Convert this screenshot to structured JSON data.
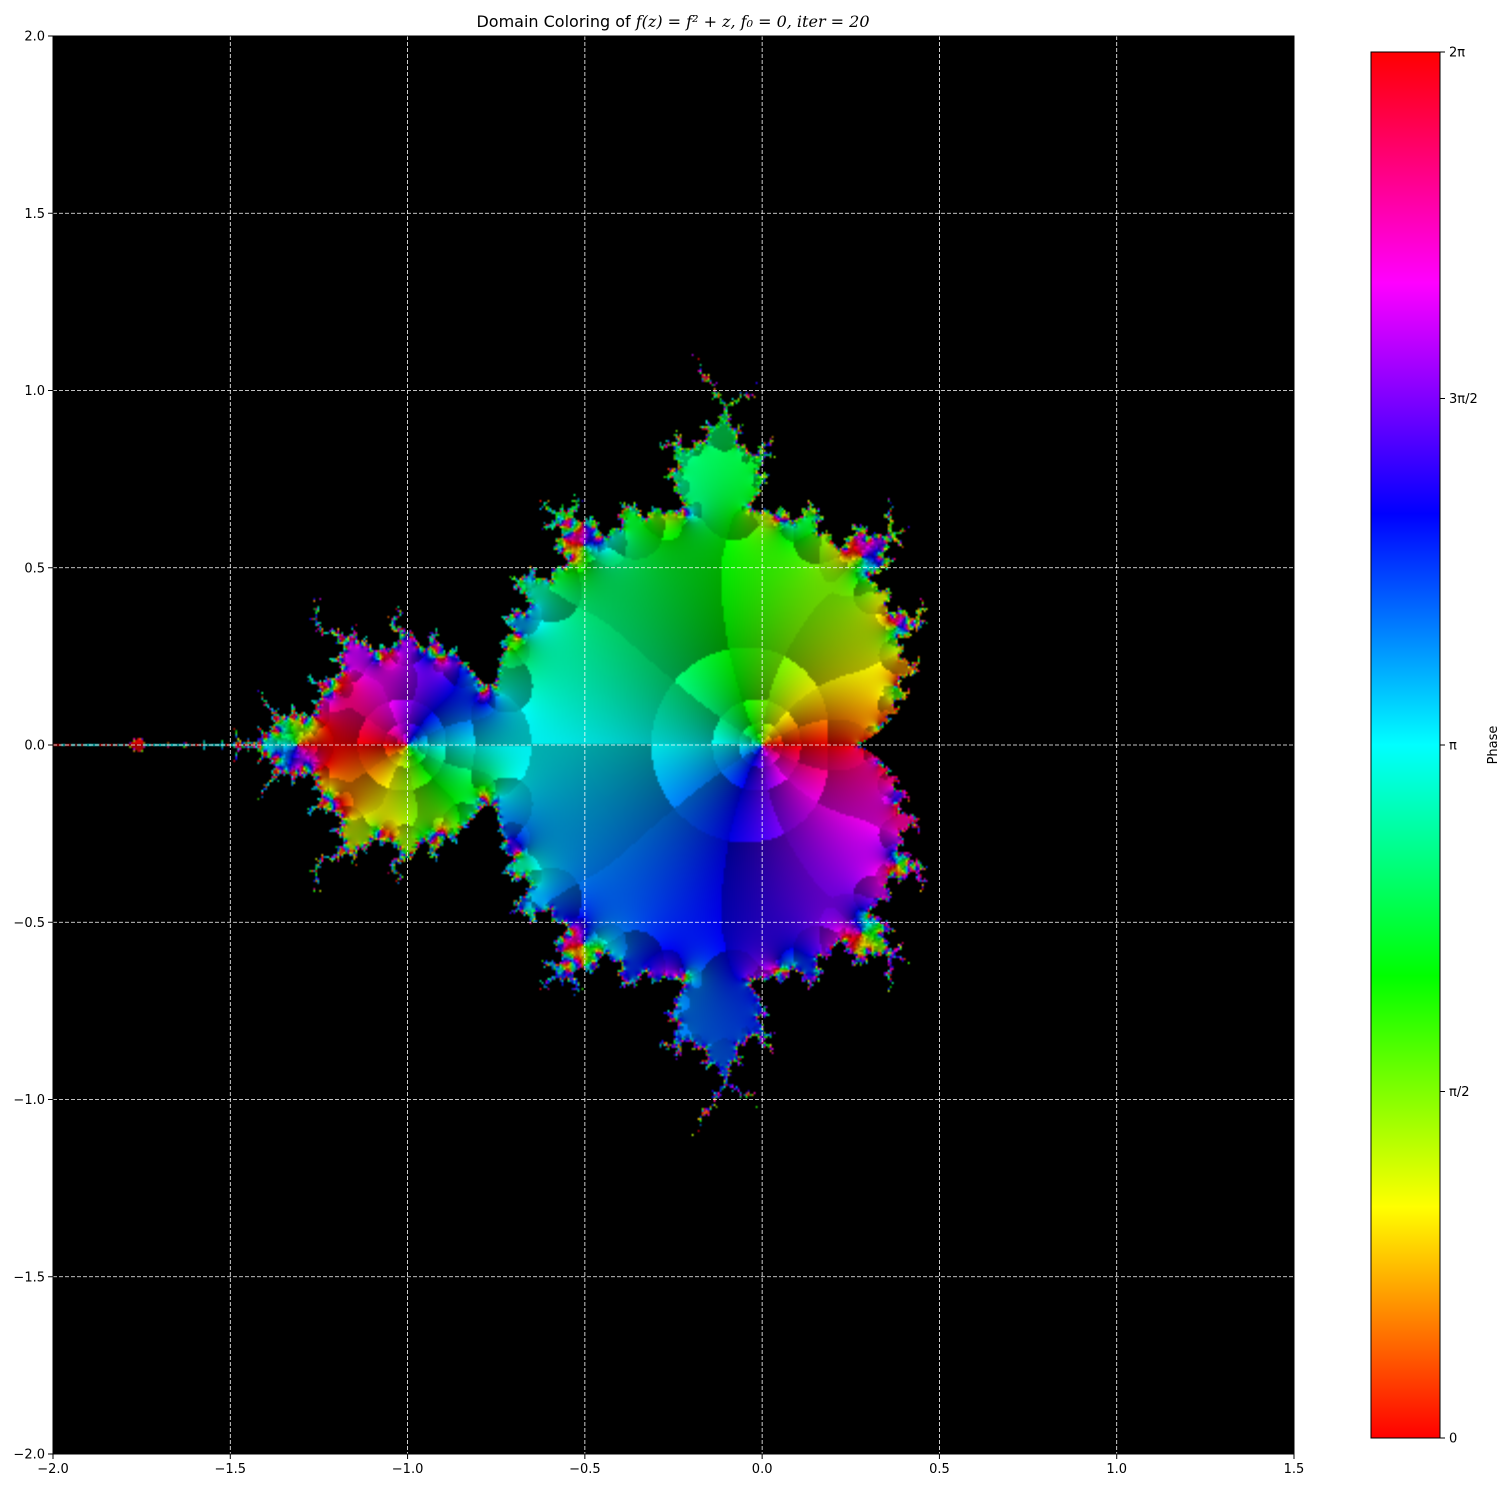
{
  "chart_data": {
    "type": "heatmap",
    "title": {
      "prefix": "Domain Coloring of ",
      "math": "f(z) = f² + z, f₀ = 0, iter = 20"
    },
    "function": "f(z) = f^2 + z",
    "f0": 0,
    "iterations": 20,
    "xlim": [
      -2.0,
      1.5
    ],
    "ylim": [
      -2.0,
      2.0
    ],
    "x_ticks": [
      -2.0,
      -1.5,
      -1.0,
      -0.5,
      0.0,
      0.5,
      1.0,
      1.5
    ],
    "y_ticks": [
      -2.0,
      -1.5,
      -1.0,
      -0.5,
      0.0,
      0.5,
      1.0,
      1.5,
      2.0
    ],
    "x_tick_labels": [
      "−2.0",
      "−1.5",
      "−1.0",
      "−0.5",
      "0.0",
      "0.5",
      "1.0",
      "1.5"
    ],
    "y_tick_labels": [
      "−2.0",
      "−1.5",
      "−1.0",
      "−0.5",
      "0.0",
      "0.5",
      "1.0",
      "1.5",
      "2.0"
    ],
    "grid": true,
    "grid_style": "dashed",
    "grid_color": "#ffffff",
    "background_color": "#000000",
    "colorbar": {
      "label": "Phase",
      "colormap": "hsv",
      "range": [
        0,
        6.283185307
      ],
      "ticks": [
        0,
        1.570796327,
        3.141592654,
        4.71238898,
        6.283185307
      ],
      "tick_labels": [
        "0",
        "π/2",
        "π",
        "3π/2",
        "2π"
      ]
    }
  }
}
